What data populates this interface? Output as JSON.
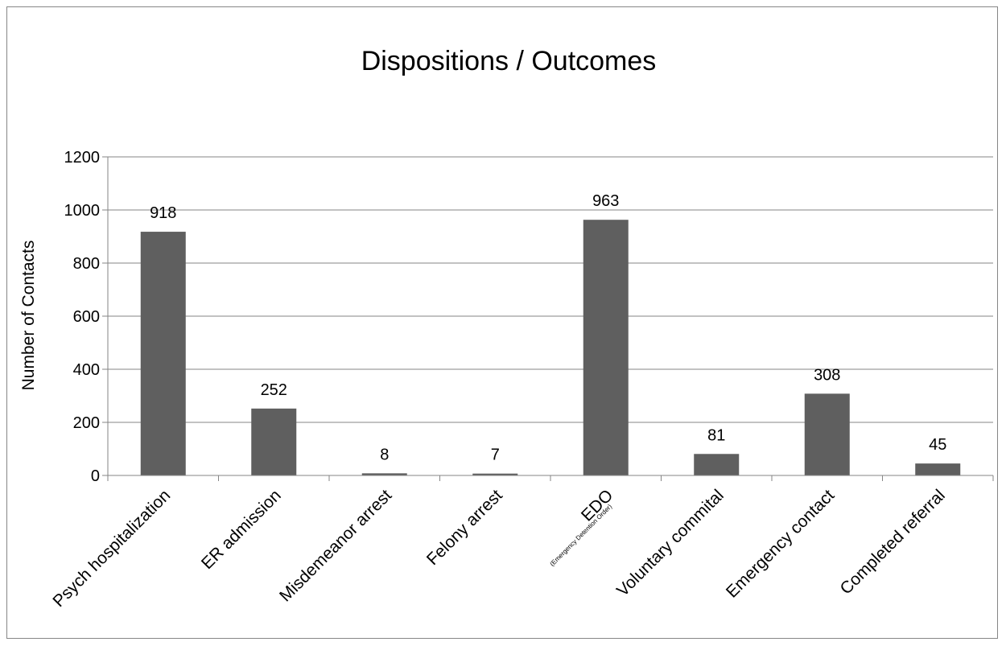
{
  "chart_data": {
    "type": "bar",
    "title": "Dispositions / Outcomes",
    "xlabel": "",
    "ylabel": "Number of Contacts",
    "ylim": [
      0,
      1200
    ],
    "yticks": [
      "0",
      "200",
      "400",
      "600",
      "800",
      "1000",
      "1200"
    ],
    "grid": true,
    "categories": [
      "Psych hospitalization",
      "ER admission",
      "Misdemeanor arrest",
      "Felony arrest",
      "EDO",
      "Voluntary commital",
      "Emergency contact",
      "Completed referral"
    ],
    "category_sublabels": [
      "",
      "",
      "",
      "",
      "(Emergency Detention Order)",
      "",
      "",
      ""
    ],
    "values": [
      918,
      252,
      8,
      7,
      963,
      81,
      308,
      45
    ],
    "data_labels": [
      "918",
      "252",
      "8",
      "7",
      "963",
      "81",
      "308",
      "45"
    ],
    "colors": {
      "bar": "#5f5f5f",
      "grid": "#868686",
      "axis": "#868686"
    }
  }
}
